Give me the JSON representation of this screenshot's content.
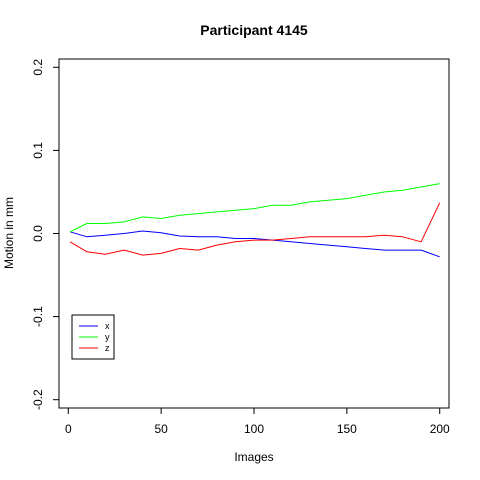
{
  "chart_data": {
    "type": "line",
    "title": "Participant 4145",
    "xlabel": "Images",
    "ylabel": "Motion in mm",
    "xlim": [
      -5,
      205
    ],
    "ylim": [
      -0.21,
      0.21
    ],
    "x_ticks": [
      0,
      50,
      100,
      150,
      200
    ],
    "x_tick_labels": [
      "0",
      "50",
      "100",
      "150",
      "200"
    ],
    "y_ticks": [
      -0.2,
      -0.1,
      0.0,
      0.1,
      0.2
    ],
    "y_tick_labels": [
      "-0.2",
      "-0.1",
      "0.0",
      "0.1",
      "0.2"
    ],
    "legend_position": "bottom-left",
    "grid": false,
    "series": [
      {
        "name": "x",
        "color": "#0000ff",
        "x": [
          1,
          10,
          20,
          30,
          40,
          50,
          60,
          70,
          80,
          90,
          100,
          110,
          120,
          130,
          140,
          150,
          160,
          170,
          180,
          190,
          200
        ],
        "values": [
          0.002,
          -0.004,
          -0.002,
          0.0,
          0.003,
          0.001,
          -0.003,
          -0.004,
          -0.004,
          -0.006,
          -0.006,
          -0.008,
          -0.01,
          -0.012,
          -0.014,
          -0.016,
          -0.018,
          -0.02,
          -0.02,
          -0.02,
          -0.028
        ]
      },
      {
        "name": "y",
        "color": "#00ff00",
        "x": [
          1,
          10,
          20,
          30,
          40,
          50,
          60,
          70,
          80,
          90,
          100,
          110,
          120,
          130,
          140,
          150,
          160,
          170,
          180,
          190,
          200
        ],
        "values": [
          0.002,
          0.012,
          0.012,
          0.014,
          0.02,
          0.018,
          0.022,
          0.024,
          0.026,
          0.028,
          0.03,
          0.034,
          0.034,
          0.038,
          0.04,
          0.042,
          0.046,
          0.05,
          0.052,
          0.056,
          0.06
        ]
      },
      {
        "name": "z",
        "color": "#ff0000",
        "x": [
          1,
          10,
          20,
          30,
          40,
          50,
          60,
          70,
          80,
          90,
          100,
          110,
          120,
          130,
          140,
          150,
          160,
          170,
          180,
          190,
          200
        ],
        "values": [
          -0.01,
          -0.022,
          -0.025,
          -0.02,
          -0.026,
          -0.024,
          -0.018,
          -0.02,
          -0.014,
          -0.01,
          -0.008,
          -0.008,
          -0.006,
          -0.004,
          -0.004,
          -0.004,
          -0.004,
          -0.002,
          -0.004,
          -0.01,
          0.037
        ]
      }
    ]
  }
}
